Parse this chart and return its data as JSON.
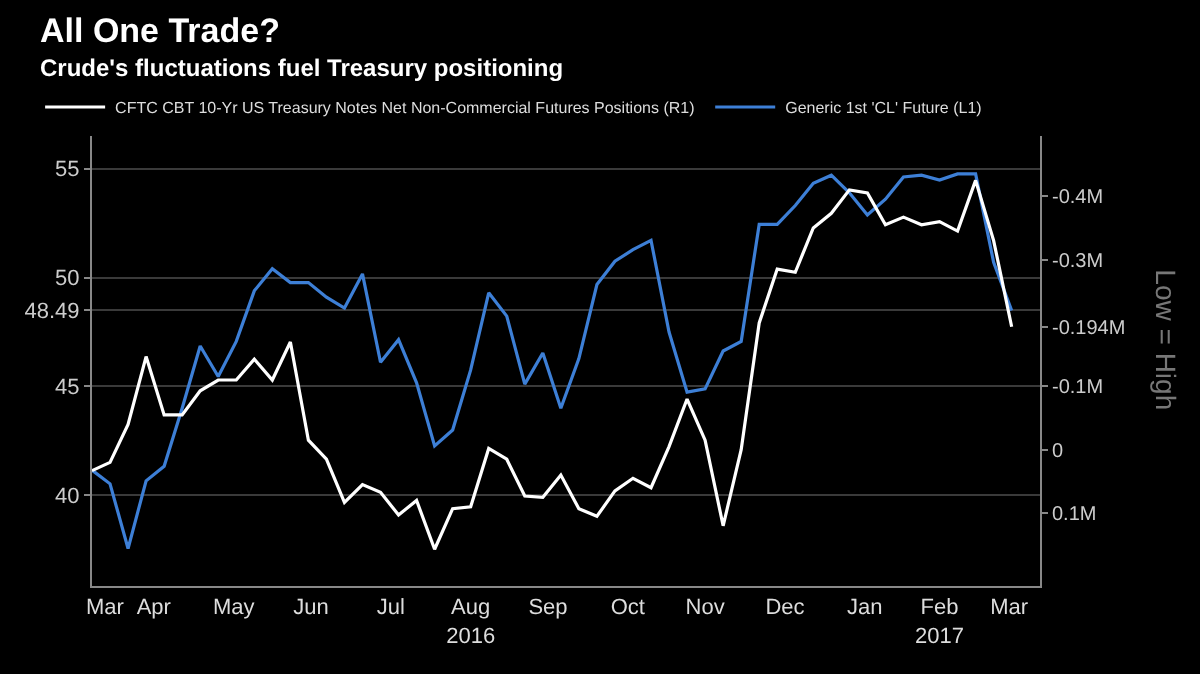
{
  "chart_data": {
    "type": "line",
    "title": "All One Trade?",
    "subtitle": "Crude's fluctuations fuel Treasury positioning",
    "x": [
      "2016-03-22",
      "2016-03-29",
      "2016-04-05",
      "2016-04-12",
      "2016-04-19",
      "2016-04-26",
      "2016-05-03",
      "2016-05-10",
      "2016-05-17",
      "2016-05-24",
      "2016-05-31",
      "2016-06-07",
      "2016-06-14",
      "2016-06-21",
      "2016-06-28",
      "2016-07-05",
      "2016-07-12",
      "2016-07-19",
      "2016-07-26",
      "2016-08-02",
      "2016-08-09",
      "2016-08-16",
      "2016-08-23",
      "2016-08-30",
      "2016-09-06",
      "2016-09-13",
      "2016-09-20",
      "2016-09-27",
      "2016-10-04",
      "2016-10-11",
      "2016-10-18",
      "2016-10-25",
      "2016-11-01",
      "2016-11-08",
      "2016-11-15",
      "2016-11-22",
      "2016-11-29",
      "2016-12-06",
      "2016-12-13",
      "2016-12-20",
      "2016-12-27",
      "2017-01-03",
      "2017-01-10",
      "2017-01-17",
      "2017-01-24",
      "2017-01-31",
      "2017-02-07",
      "2017-02-14",
      "2017-02-21",
      "2017-02-28",
      "2017-03-07",
      "2017-03-14"
    ],
    "series": [
      {
        "name": "CFTC CBT 10-Yr US Treasury Notes Net Non-Commercial Futures Positions (R1)",
        "color": "#ffffff",
        "axis": "y2",
        "values": [
          0.033,
          0.02,
          -0.04,
          -0.147,
          -0.055,
          -0.055,
          -0.093,
          -0.11,
          -0.11,
          -0.143,
          -0.11,
          -0.17,
          -0.015,
          0.015,
          0.083,
          0.055,
          0.067,
          0.103,
          0.08,
          0.157,
          0.093,
          0.09,
          -0.002,
          0.015,
          0.073,
          0.075,
          0.04,
          0.093,
          0.105,
          0.065,
          0.045,
          0.06,
          -0.005,
          -0.08,
          -0.015,
          0.12,
          0.0,
          -0.2,
          -0.285,
          -0.28,
          -0.35,
          -0.373,
          -0.41,
          -0.405,
          -0.355,
          -0.367,
          -0.355,
          -0.36,
          -0.345,
          -0.425,
          -0.33,
          -0.194
        ]
      },
      {
        "name": "Generic 1st 'CL' Future (L1)",
        "color": "#3d7fd6",
        "values": [
          41.16,
          40.53,
          37.56,
          40.67,
          41.34,
          44.0,
          46.86,
          45.46,
          47.07,
          49.39,
          50.41,
          49.77,
          49.77,
          49.1,
          48.6,
          50.17,
          46.11,
          47.15,
          45.17,
          42.27,
          43.0,
          45.76,
          49.3,
          48.23,
          45.11,
          46.54,
          44.0,
          46.28,
          49.68,
          50.75,
          51.28,
          51.71,
          47.5,
          44.74,
          44.89,
          46.63,
          47.07,
          52.44,
          52.44,
          53.31,
          54.33,
          54.7,
          53.89,
          52.87,
          53.6,
          54.62,
          54.7,
          54.48,
          54.76,
          54.76,
          50.7,
          48.49
        ]
      }
    ],
    "xlim": [
      "2016-03-22",
      "2017-03-25"
    ],
    "xticks": [
      {
        "value": "2016-03-27",
        "label": "Mar"
      },
      {
        "value": "2016-04-15",
        "label": "Apr"
      },
      {
        "value": "2016-05-16",
        "label": "May"
      },
      {
        "value": "2016-06-15",
        "label": "Jun"
      },
      {
        "value": "2016-07-16",
        "label": "Jul"
      },
      {
        "value": "2016-08-16",
        "label": "Aug\n2016"
      },
      {
        "value": "2016-09-15",
        "label": "Sep"
      },
      {
        "value": "2016-10-16",
        "label": "Oct"
      },
      {
        "value": "2016-11-15",
        "label": "Nov"
      },
      {
        "value": "2016-12-16",
        "label": "Dec"
      },
      {
        "value": "2017-01-16",
        "label": "Jan"
      },
      {
        "value": "2017-02-14",
        "label": "Feb\n2017"
      },
      {
        "value": "2017-03-13",
        "label": "Mar"
      }
    ],
    "ylim": [
      35.84,
      56.5
    ],
    "yticks": [
      40,
      45,
      {
        "value": 48.49,
        "label": "48.49"
      },
      50,
      55
    ],
    "y2lim": [
      0.215,
      -0.495
    ],
    "y2ticks": [
      {
        "value": -0.4,
        "label": "-0.4M"
      },
      {
        "value": -0.3,
        "label": "-0.3M"
      },
      {
        "value": -0.194,
        "label": "-0.194M"
      },
      {
        "value": -0.1,
        "label": "-0.1M"
      },
      0,
      {
        "value": 0.1,
        "label": "0.1M"
      }
    ],
    "grid": "y",
    "legend": "top",
    "annotations": [
      "Low = High"
    ]
  }
}
